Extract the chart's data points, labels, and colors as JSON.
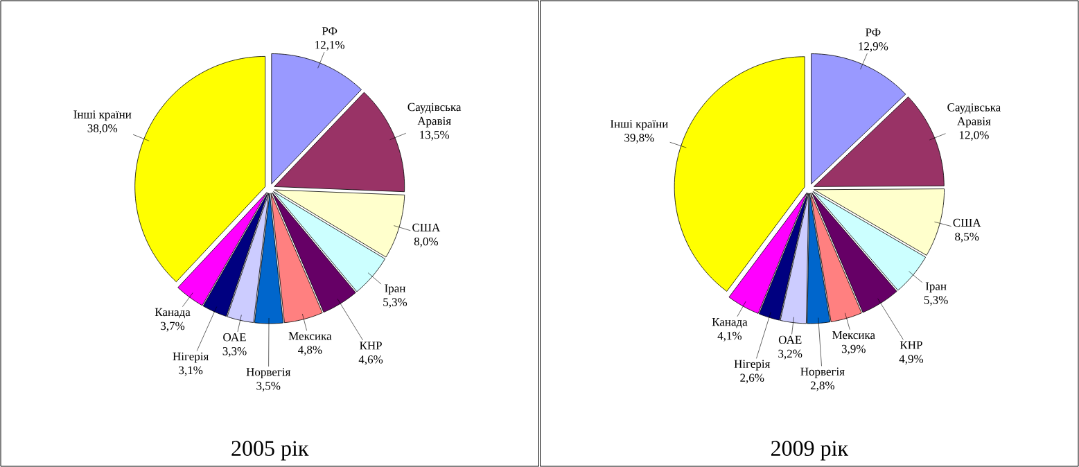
{
  "chart_data": [
    {
      "type": "pie",
      "title": "2005 рік",
      "categories": [
        "РФ",
        "Саудівська Аравія",
        "США",
        "Іран",
        "КНР",
        "Мексика",
        "Норвегія",
        "ОАЕ",
        "Нігерія",
        "Канада",
        "Інші країни"
      ],
      "values": [
        12.1,
        13.5,
        8.0,
        5.3,
        4.6,
        4.8,
        3.5,
        3.3,
        3.1,
        3.7,
        38.0
      ],
      "value_labels": [
        "12,1%",
        "13,5%",
        "8,0%",
        "5,3%",
        "4,6%",
        "4,8%",
        "3,5%",
        "3,3%",
        "3,1%",
        "3,7%",
        "38,0%"
      ],
      "colors": [
        "#9999ff",
        "#993366",
        "#ffffcc",
        "#ccffff",
        "#660066",
        "#ff8080",
        "#0066cc",
        "#ccccff",
        "#000080",
        "#ff00ff",
        "#ffff00"
      ]
    },
    {
      "type": "pie",
      "title": "2009 рік",
      "categories": [
        "РФ",
        "Саудівська Аравія",
        "США",
        "Іран",
        "КНР",
        "Мексика",
        "Норвегія",
        "ОАЕ",
        "Нігерія",
        "Канада",
        "Інші країни"
      ],
      "values": [
        12.9,
        12.0,
        8.5,
        5.3,
        4.9,
        3.9,
        2.8,
        3.2,
        2.6,
        4.1,
        39.8
      ],
      "value_labels": [
        "12,9%",
        "12,0%",
        "8,5%",
        "5,3%",
        "4,9%",
        "3,9%",
        "2,8%",
        "3,2%",
        "2,6%",
        "4,1%",
        "39,8%"
      ],
      "colors": [
        "#9999ff",
        "#993366",
        "#ffffcc",
        "#ccffff",
        "#660066",
        "#ff8080",
        "#0066cc",
        "#ccccff",
        "#000080",
        "#ff00ff",
        "#ffff00"
      ]
    }
  ]
}
